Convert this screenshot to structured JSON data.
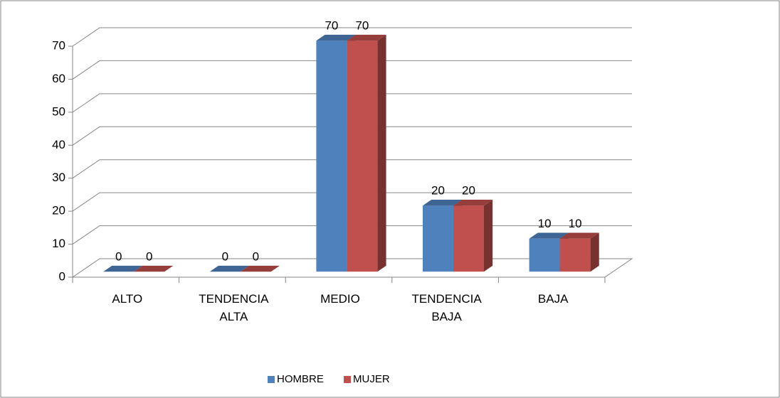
{
  "chart_data": {
    "type": "bar3d",
    "categories": [
      "ALTO",
      "TENDENCIA ALTA",
      "MEDIO",
      "TENDENCIA BAJA",
      "BAJA"
    ],
    "series": [
      {
        "name": "HOMBRE",
        "color": "#4f81bd",
        "values": [
          0,
          0,
          70,
          20,
          10
        ]
      },
      {
        "name": "MUJER",
        "color": "#c0504d",
        "values": [
          0,
          0,
          70,
          20,
          10
        ]
      }
    ],
    "ylim": [
      0,
      70
    ],
    "yticks": [
      0,
      10,
      20,
      30,
      40,
      50,
      60,
      70
    ],
    "grid": true,
    "legend": "bottom"
  }
}
